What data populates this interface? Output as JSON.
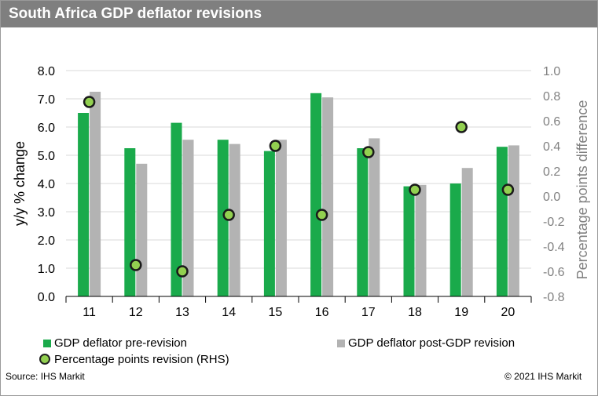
{
  "title": "South Africa GDP deflator revisions",
  "source": "Source: IHS Markit",
  "copyright": "© 2021 IHS Markit",
  "chart_data": {
    "type": "bar",
    "categories": [
      "11",
      "12",
      "13",
      "14",
      "15",
      "16",
      "17",
      "18",
      "19",
      "20"
    ],
    "ylabel": "y/y % change",
    "y2label": "Percentage points difference",
    "ylim": [
      0,
      8
    ],
    "y2lim": [
      -0.8,
      1.0
    ],
    "yticks": [
      "0.0",
      "1.0",
      "2.0",
      "3.0",
      "4.0",
      "5.0",
      "6.0",
      "7.0",
      "8.0"
    ],
    "y2ticks": [
      "-0.8",
      "-0.6",
      "-0.4",
      "-0.2",
      "0.0",
      "0.2",
      "0.4",
      "0.6",
      "0.8",
      "1.0"
    ],
    "grid": "horizontal",
    "series": [
      {
        "name": "GDP deflator pre-revision",
        "type": "bar",
        "axis": "left",
        "color": "#1aaa4b",
        "values": [
          6.5,
          5.25,
          6.15,
          5.55,
          5.15,
          7.2,
          5.25,
          3.9,
          4.0,
          5.3
        ]
      },
      {
        "name": "GDP deflator post-GDP revision",
        "type": "bar",
        "axis": "left",
        "color": "#b3b3b3",
        "values": [
          7.25,
          4.7,
          5.55,
          5.4,
          5.55,
          7.05,
          5.6,
          3.95,
          4.55,
          5.35
        ]
      },
      {
        "name": "Percentage points revision (RHS)",
        "type": "scatter",
        "axis": "right",
        "color": "#92d050",
        "values": [
          0.75,
          -0.55,
          -0.6,
          -0.15,
          0.4,
          -0.15,
          0.35,
          0.05,
          0.55,
          0.05
        ]
      }
    ]
  }
}
